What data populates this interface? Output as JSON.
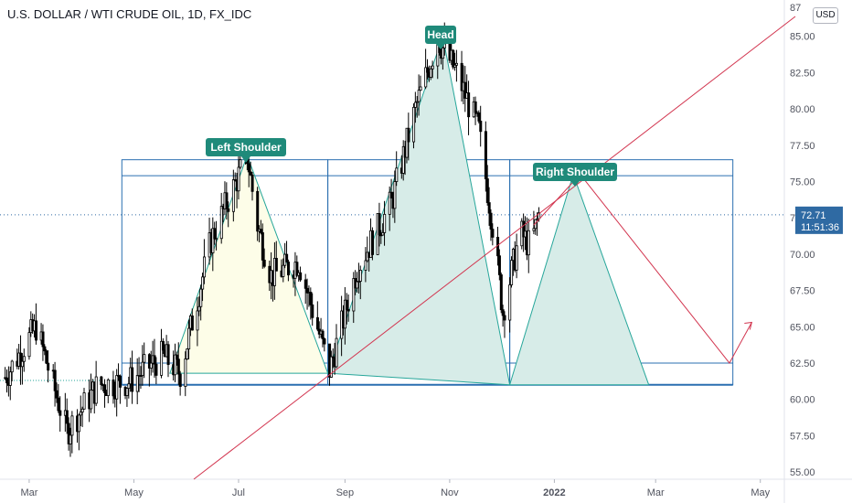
{
  "chart_data": {
    "type": "candlestick",
    "title": "U.S. DOLLAR / WTI CRUDE OIL, 1D, FX_IDC",
    "currency_button": "USD",
    "x_tick_labels": [
      "Mar",
      "May",
      "Jul",
      "Sep",
      "Nov",
      "2022",
      "Mar",
      "May"
    ],
    "y_tick_labels": [
      "55.00",
      "57.50",
      "60.00",
      "62.50",
      "65.00",
      "67.50",
      "70.00",
      "72.50",
      "75.00",
      "77.50",
      "80.00",
      "82.50",
      "85.00",
      "87"
    ],
    "ylim": [
      54.5,
      87.5
    ],
    "last_price": "72.71",
    "countdown": "11:51:36",
    "annotations": [
      "Left Shoulder",
      "Head",
      "Right Shoulder"
    ],
    "colors": {
      "candle": "#000000",
      "pattern_line": "#26a69a",
      "pattern_fill_left": "#fdfde8",
      "pattern_fill_head": "#d7ece8",
      "boxes": "#2a6fb0",
      "trendline": "#d2354f",
      "callout": "#1f8a7a",
      "price_tag": "#2f6aa3"
    },
    "candles_anchor": [
      [
        "2021-02-15",
        61.5
      ],
      [
        "2021-03-05",
        65.0
      ],
      [
        "2021-03-23",
        57.8
      ],
      [
        "2021-04-10",
        61.0
      ],
      [
        "2021-04-28",
        61.2
      ],
      [
        "2021-05-18",
        63.0
      ],
      [
        "2021-05-28",
        61.8
      ],
      [
        "2021-06-15",
        71.0
      ],
      [
        "2021-07-06",
        76.8
      ],
      [
        "2021-07-12",
        72.0
      ],
      [
        "2021-07-20",
        68.5
      ],
      [
        "2021-08-05",
        69.5
      ],
      [
        "2021-08-23",
        62.0
      ],
      [
        "2021-09-08",
        69.0
      ],
      [
        "2021-09-28",
        73.5
      ],
      [
        "2021-10-12",
        80.0
      ],
      [
        "2021-10-25",
        84.8
      ],
      [
        "2021-11-05",
        82.5
      ],
      [
        "2021-11-18",
        78.5
      ],
      [
        "2021-11-26",
        72.0
      ],
      [
        "2021-12-02",
        66.0
      ],
      [
        "2021-12-12",
        71.5
      ],
      [
        "2021-12-18",
        70.5
      ],
      [
        "2021-12-23",
        72.7
      ]
    ],
    "pattern": {
      "left_shoulder": [
        [
          "2021-05-22",
          61.8
        ],
        [
          "2021-07-06",
          76.8
        ],
        [
          "2021-08-22",
          61.8
        ]
      ],
      "head": [
        [
          "2021-08-22",
          61.8
        ],
        [
          "2021-10-28",
          85.0
        ],
        [
          "2021-12-06",
          61.0
        ]
      ],
      "right_shoulder": [
        [
          "2021-12-06",
          61.0
        ],
        [
          "2022-01-12",
          75.5
        ],
        [
          "2022-02-25",
          61.0
        ]
      ]
    }
  }
}
